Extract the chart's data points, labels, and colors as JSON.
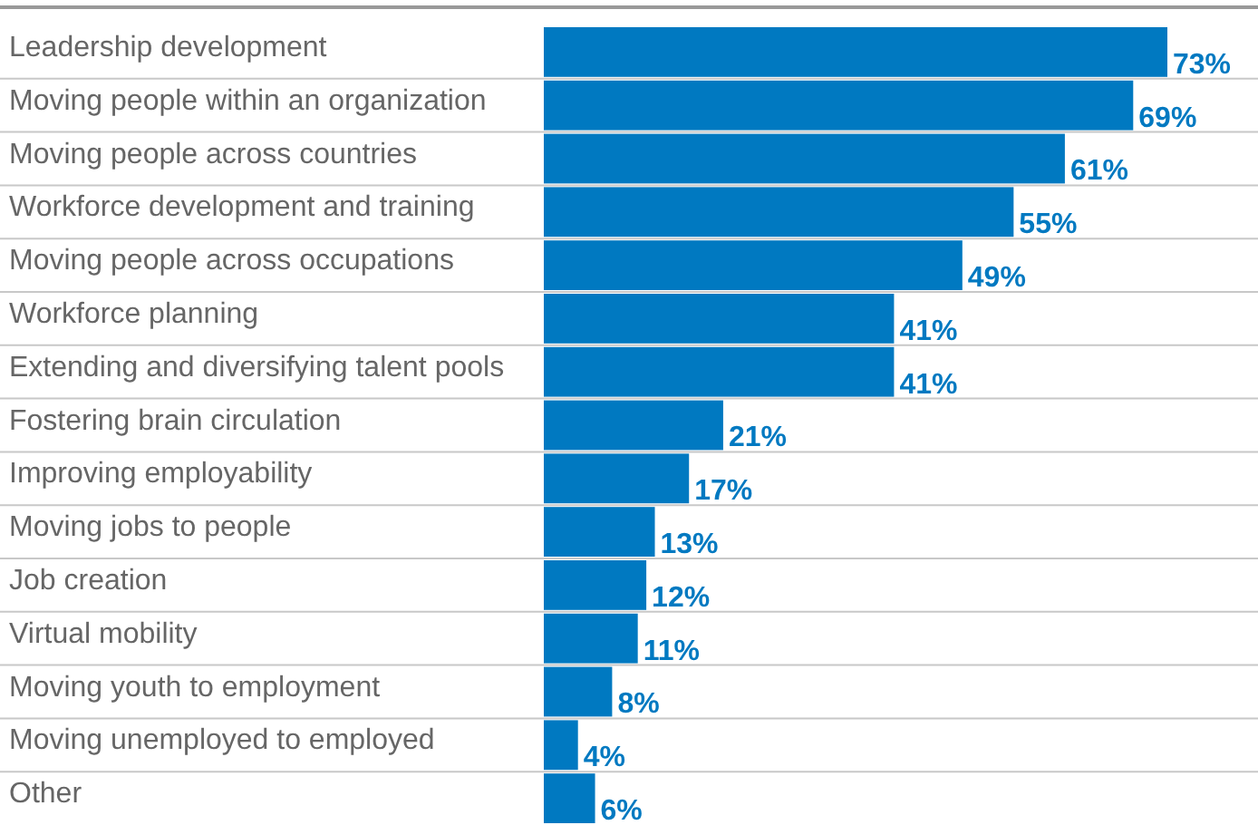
{
  "chart_data": {
    "type": "bar",
    "orientation": "horizontal",
    "categories": [
      "Leadership development",
      "Moving people within an organization",
      "Moving people across countries",
      "Workforce development and training",
      "Moving people across occupations",
      "Workforce planning",
      "Extending and diversifying talent pools",
      "Fostering brain circulation",
      "Improving employability",
      "Moving jobs to people",
      "Job creation",
      "Virtual mobility",
      "Moving youth to employment",
      "Moving unemployed to employed",
      "Other"
    ],
    "values": [
      73,
      69,
      61,
      55,
      49,
      41,
      41,
      21,
      17,
      13,
      12,
      11,
      8,
      4,
      6
    ],
    "value_labels": [
      "73%",
      "69%",
      "61%",
      "55%",
      "49%",
      "41%",
      "41%",
      "21%",
      "17%",
      "13%",
      "12%",
      "11%",
      "8%",
      "4%",
      "6%"
    ],
    "color": "#0079c1",
    "grid": "y"
  }
}
